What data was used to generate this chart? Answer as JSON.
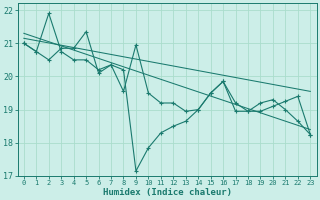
{
  "xlabel": "Humidex (Indice chaleur)",
  "xlim": [
    -0.5,
    23.5
  ],
  "ylim": [
    17,
    22.2
  ],
  "yticks": [
    17,
    18,
    19,
    20,
    21,
    22
  ],
  "xticks": [
    0,
    1,
    2,
    3,
    4,
    5,
    6,
    7,
    8,
    9,
    10,
    11,
    12,
    13,
    14,
    15,
    16,
    17,
    18,
    19,
    20,
    21,
    22,
    23
  ],
  "bg_color": "#cceee8",
  "grid_color": "#aaddcc",
  "line_color": "#1a7a6e",
  "line1_x": [
    0,
    1,
    2,
    3,
    4,
    5,
    6,
    7,
    8,
    9,
    10,
    11,
    12,
    13,
    14,
    15,
    16,
    17,
    18,
    19,
    20,
    21,
    22,
    23
  ],
  "line1_y": [
    21.0,
    20.75,
    21.9,
    20.75,
    20.5,
    20.5,
    20.2,
    20.35,
    20.2,
    17.15,
    17.85,
    18.3,
    18.5,
    18.65,
    19.0,
    19.5,
    19.85,
    19.2,
    18.95,
    19.2,
    19.3,
    19.0,
    18.65,
    18.25
  ],
  "line2_x": [
    0,
    1,
    2,
    3,
    4,
    5,
    6,
    7,
    8,
    9,
    10,
    11,
    12,
    13,
    14,
    15,
    16,
    17,
    18,
    19,
    20,
    21,
    22,
    23
  ],
  "line2_y": [
    21.0,
    20.75,
    20.5,
    20.85,
    20.85,
    21.35,
    20.1,
    20.35,
    19.55,
    20.95,
    19.5,
    19.2,
    19.2,
    18.95,
    19.0,
    19.5,
    19.85,
    18.95,
    18.95,
    18.95,
    19.1,
    19.25,
    19.4,
    18.25
  ],
  "trend1_x": [
    0,
    23
  ],
  "trend1_y": [
    21.15,
    19.55
  ],
  "trend2_x": [
    0,
    23
  ],
  "trend2_y": [
    21.3,
    18.4
  ]
}
